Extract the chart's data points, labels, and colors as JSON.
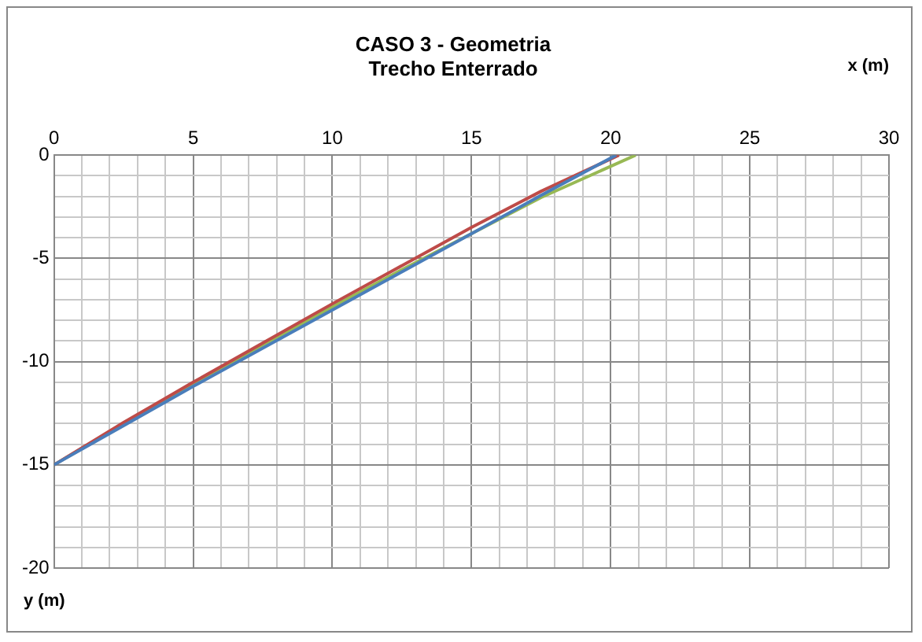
{
  "chart_data": {
    "type": "line",
    "title": "CASO 3 - Geometria\nTrecho Enterrado",
    "xlabel": "x (m)",
    "ylabel": "y (m)",
    "xlim": [
      0,
      30
    ],
    "ylim": [
      -20,
      0
    ],
    "xticks": [
      0,
      {
        "value": 1,
        "label": null
      },
      {
        "value": 2,
        "label": null
      },
      {
        "value": 3,
        "label": null
      },
      {
        "value": 4,
        "label": null
      },
      5,
      {
        "value": 6,
        "label": null
      },
      {
        "value": 7,
        "label": null
      },
      {
        "value": 8,
        "label": null
      },
      {
        "value": 9,
        "label": null
      },
      10,
      {
        "value": 11,
        "label": null
      },
      {
        "value": 12,
        "label": null
      },
      {
        "value": 13,
        "label": null
      },
      {
        "value": 14,
        "label": null
      },
      15,
      {
        "value": 16,
        "label": null
      },
      {
        "value": 17,
        "label": null
      },
      {
        "value": 18,
        "label": null
      },
      {
        "value": 19,
        "label": null
      },
      20,
      {
        "value": 21,
        "label": null
      },
      {
        "value": 22,
        "label": null
      },
      {
        "value": 23,
        "label": null
      },
      {
        "value": 24,
        "label": null
      },
      25,
      {
        "value": 26,
        "label": null
      },
      {
        "value": 27,
        "label": null
      },
      {
        "value": 28,
        "label": null
      },
      {
        "value": 29,
        "label": null
      },
      30
    ],
    "yticks": [
      -20,
      {
        "value": -19,
        "label": null
      },
      {
        "value": -18,
        "label": null
      },
      {
        "value": -17,
        "label": null
      },
      {
        "value": -16,
        "label": null
      },
      -15,
      {
        "value": -14,
        "label": null
      },
      {
        "value": -13,
        "label": null
      },
      {
        "value": -12,
        "label": null
      },
      {
        "value": -11,
        "label": null
      },
      -10,
      {
        "value": -9,
        "label": null
      },
      {
        "value": -8,
        "label": null
      },
      {
        "value": -7,
        "label": null
      },
      {
        "value": -6,
        "label": null
      },
      -5,
      {
        "value": -4,
        "label": null
      },
      {
        "value": -3,
        "label": null
      },
      {
        "value": -2,
        "label": null
      },
      {
        "value": -1,
        "label": null
      },
      0
    ],
    "grid": true,
    "legend": false,
    "marker": "none",
    "line_style": "solid",
    "series": [
      {
        "color": "#4a7ebb",
        "x": [
          0,
          2.5,
          5,
          7.5,
          10,
          12.5,
          15,
          17.5,
          20.2
        ],
        "values": [
          -15,
          -13.1,
          -11.2,
          -9.35,
          -7.5,
          -5.65,
          -3.8,
          -1.95,
          0
        ]
      },
      {
        "color": "#be4b48",
        "x": [
          0,
          2.5,
          5,
          7.5,
          10,
          12.3,
          15,
          17.5,
          20.3
        ],
        "values": [
          -15,
          -12.95,
          -11.0,
          -9.1,
          -7.2,
          -5.5,
          -3.5,
          -1.75,
          0
        ]
      },
      {
        "color": "#98b954",
        "x": [
          0,
          2.5,
          5,
          7.5,
          10,
          12.5,
          15,
          17.5,
          20.9
        ],
        "values": [
          -15,
          -13.0,
          -11.1,
          -9.2,
          -7.35,
          -5.55,
          -3.8,
          -2.05,
          0
        ]
      }
    ]
  }
}
